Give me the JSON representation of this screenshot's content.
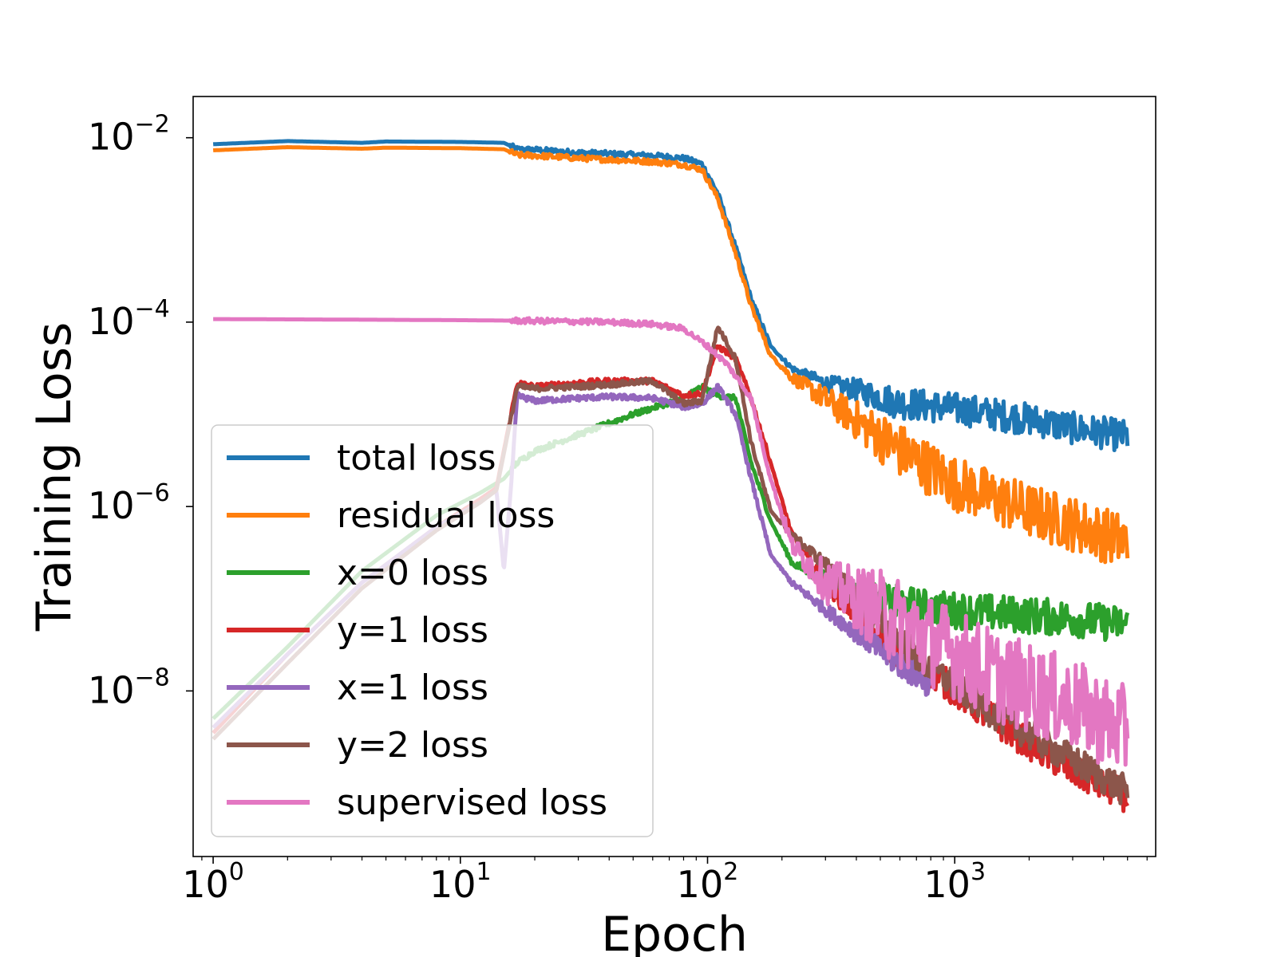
{
  "chart_data": {
    "type": "line",
    "xscale": "log",
    "yscale": "log",
    "xlabel": "Epoch",
    "ylabel": "Training Loss",
    "xlim": [
      0.83,
      6500
    ],
    "ylim": [
      1.6e-10,
      0.028
    ],
    "grid": false,
    "legend_position": "lower-left",
    "x_ticks": [
      {
        "base": "10",
        "exp": "0",
        "value": 1
      },
      {
        "base": "10",
        "exp": "1",
        "value": 10
      },
      {
        "base": "10",
        "exp": "2",
        "value": 100
      },
      {
        "base": "10",
        "exp": "3",
        "value": 1000
      }
    ],
    "y_ticks": [
      {
        "base": "10",
        "exp": "−2",
        "value": 0.01
      },
      {
        "base": "10",
        "exp": "−4",
        "value": 0.0001
      },
      {
        "base": "10",
        "exp": "−6",
        "value": 1e-06
      },
      {
        "base": "10",
        "exp": "−8",
        "value": 1e-08
      }
    ],
    "series": [
      {
        "name": "total loss",
        "color": "#1f77b4",
        "noise": 0.35,
        "points": [
          [
            1,
            0.0085
          ],
          [
            2,
            0.0092
          ],
          [
            4,
            0.0088
          ],
          [
            5,
            0.0091
          ],
          [
            10,
            0.009
          ],
          [
            15,
            0.0088
          ],
          [
            17,
            0.0075
          ],
          [
            20,
            0.0074
          ],
          [
            30,
            0.0069
          ],
          [
            40,
            0.0067
          ],
          [
            60,
            0.0064
          ],
          [
            80,
            0.006
          ],
          [
            95,
            0.0052
          ],
          [
            110,
            0.0025
          ],
          [
            130,
            0.00065
          ],
          [
            150,
            0.00018
          ],
          [
            180,
            5.5e-05
          ],
          [
            220,
            3.2e-05
          ],
          [
            300,
            2.3e-05
          ],
          [
            400,
            2e-05
          ],
          [
            600,
            1.5e-05
          ],
          [
            1000,
            1.3e-05
          ],
          [
            2000,
            1e-05
          ],
          [
            3000,
            8e-06
          ],
          [
            5000,
            6.5e-06
          ]
        ]
      },
      {
        "name": "residual loss",
        "color": "#ff7f0e",
        "noise": 0.6,
        "points": [
          [
            1,
            0.0073
          ],
          [
            2,
            0.0079
          ],
          [
            4,
            0.0076
          ],
          [
            5,
            0.0078
          ],
          [
            10,
            0.0077
          ],
          [
            15,
            0.0075
          ],
          [
            17,
            0.0065
          ],
          [
            20,
            0.0064
          ],
          [
            30,
            0.006
          ],
          [
            40,
            0.0058
          ],
          [
            60,
            0.0055
          ],
          [
            80,
            0.0051
          ],
          [
            95,
            0.0045
          ],
          [
            110,
            0.0022
          ],
          [
            130,
            0.00055
          ],
          [
            150,
            0.00015
          ],
          [
            180,
            4.4e-05
          ],
          [
            220,
            2.6e-05
          ],
          [
            300,
            1.6e-05
          ],
          [
            400,
            1e-05
          ],
          [
            600,
            5e-06
          ],
          [
            1000,
            2.2e-06
          ],
          [
            2000,
            1.1e-06
          ],
          [
            3000,
            8e-07
          ],
          [
            5000,
            5e-07
          ]
        ]
      },
      {
        "name": "x=0 loss",
        "color": "#2ca02c",
        "noise": 0.4,
        "points": [
          [
            1,
            5e-09
          ],
          [
            2,
            3e-08
          ],
          [
            4,
            2e-07
          ],
          [
            8,
            8e-07
          ],
          [
            12,
            1.4e-06
          ],
          [
            15,
            2e-06
          ],
          [
            17,
            3e-06
          ],
          [
            20,
            4e-06
          ],
          [
            30,
            6e-06
          ],
          [
            50,
            1e-05
          ],
          [
            80,
            1.5e-05
          ],
          [
            95,
            2e-05
          ],
          [
            110,
            1.6e-05
          ],
          [
            130,
            1.5e-05
          ],
          [
            150,
            3e-06
          ],
          [
            180,
            7e-07
          ],
          [
            220,
            2.5e-07
          ],
          [
            400,
            1.2e-07
          ],
          [
            800,
            9e-08
          ],
          [
            1500,
            8e-08
          ],
          [
            3000,
            7e-08
          ],
          [
            5000,
            6e-08
          ]
        ]
      },
      {
        "name": "y=1 loss",
        "color": "#d62728",
        "noise": 0.35,
        "points": [
          [
            1,
            3.5e-09
          ],
          [
            2,
            2.5e-08
          ],
          [
            4,
            1.5e-07
          ],
          [
            8,
            6e-07
          ],
          [
            12,
            1.2e-06
          ],
          [
            14,
            1.6e-06
          ],
          [
            17,
            2.2e-05
          ],
          [
            20,
            2e-05
          ],
          [
            30,
            2.2e-05
          ],
          [
            40,
            2.3e-05
          ],
          [
            60,
            2.3e-05
          ],
          [
            80,
            1.6e-05
          ],
          [
            95,
            1.7e-05
          ],
          [
            110,
            5.5e-05
          ],
          [
            130,
            4e-05
          ],
          [
            150,
            1.5e-05
          ],
          [
            180,
            3e-06
          ],
          [
            220,
            5e-07
          ],
          [
            300,
            1.5e-07
          ],
          [
            500,
            4e-08
          ],
          [
            800,
            1.8e-08
          ],
          [
            1500,
            5e-09
          ],
          [
            3000,
            1.5e-09
          ],
          [
            5000,
            8e-10
          ]
        ]
      },
      {
        "name": "x=1 loss",
        "color": "#9467bd",
        "noise": 0.3,
        "points": [
          [
            1,
            4e-09
          ],
          [
            2,
            2.5e-08
          ],
          [
            4,
            1.5e-07
          ],
          [
            8,
            6e-07
          ],
          [
            12,
            1.1e-06
          ],
          [
            14,
            1.5e-06
          ],
          [
            15,
            2e-07
          ],
          [
            16,
            1.5e-06
          ],
          [
            17,
            1.6e-05
          ],
          [
            20,
            1.4e-05
          ],
          [
            30,
            1.5e-05
          ],
          [
            40,
            1.55e-05
          ],
          [
            60,
            1.5e-05
          ],
          [
            80,
            1.2e-05
          ],
          [
            95,
            1.3e-05
          ],
          [
            110,
            2e-05
          ],
          [
            130,
            1e-05
          ],
          [
            150,
            2e-06
          ],
          [
            180,
            3e-07
          ],
          [
            220,
            1.5e-07
          ],
          [
            300,
            8e-08
          ],
          [
            500,
            3e-08
          ],
          [
            800,
            1.3e-08
          ]
        ]
      },
      {
        "name": "y=2 loss",
        "color": "#8c564b",
        "noise": 0.35,
        "points": [
          [
            1,
            3e-09
          ],
          [
            2,
            2e-08
          ],
          [
            4,
            1.3e-07
          ],
          [
            8,
            5.5e-07
          ],
          [
            12,
            1.1e-06
          ],
          [
            14,
            1.5e-06
          ],
          [
            17,
            2e-05
          ],
          [
            20,
            1.9e-05
          ],
          [
            30,
            2e-05
          ],
          [
            40,
            2.1e-05
          ],
          [
            60,
            2.3e-05
          ],
          [
            80,
            1.3e-05
          ],
          [
            95,
            1.4e-05
          ],
          [
            110,
            9e-05
          ],
          [
            130,
            4e-05
          ],
          [
            150,
            5e-06
          ],
          [
            180,
            9e-07
          ],
          [
            220,
            5e-07
          ],
          [
            300,
            2.5e-07
          ],
          [
            500,
            6e-08
          ],
          [
            800,
            2e-08
          ],
          [
            1500,
            6e-09
          ],
          [
            3000,
            2e-09
          ],
          [
            5000,
            9e-10
          ]
        ]
      },
      {
        "name": "supervised loss",
        "color": "#e377c2",
        "noise": 1.0,
        "points": [
          [
            1,
            0.000108
          ],
          [
            5,
            0.000106
          ],
          [
            10,
            0.000105
          ],
          [
            15,
            0.000104
          ],
          [
            20,
            0.000103
          ],
          [
            40,
            0.0001
          ],
          [
            60,
            9.5e-05
          ],
          [
            80,
            8.5e-05
          ],
          [
            100,
            5.5e-05
          ],
          [
            120,
            3.5e-05
          ],
          [
            150,
            1.5e-05
          ],
          [
            180,
            2e-06
          ],
          [
            220,
            4e-07
          ],
          [
            300,
            1.8e-07
          ],
          [
            500,
            1e-07
          ],
          [
            800,
            5e-08
          ],
          [
            1500,
            2e-08
          ],
          [
            3000,
            1e-08
          ],
          [
            5000,
            5e-09
          ]
        ]
      }
    ]
  }
}
